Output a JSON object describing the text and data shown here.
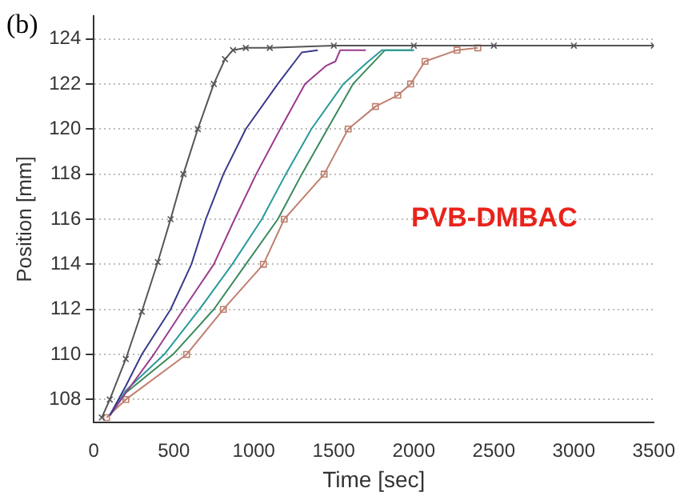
{
  "chart_data": {
    "type": "line",
    "xlabel": "Time [sec]",
    "ylabel": "Position [mm]",
    "annotations": [
      "(b)",
      "PVB-DMBAC"
    ],
    "xlim": [
      0,
      3500
    ],
    "xticks": [
      0,
      500,
      1000,
      1500,
      2000,
      2500,
      3000,
      3500
    ],
    "ylim": [
      107,
      125
    ],
    "yticks": [
      108,
      110,
      112,
      114,
      116,
      118,
      120,
      122,
      124
    ],
    "grid": "y",
    "legend": false,
    "line_style": "solid",
    "series": [
      {
        "color": "#555555",
        "marker": "cross",
        "x": [
          50,
          100,
          200,
          300,
          400,
          480,
          560,
          650,
          750,
          820,
          870,
          950,
          1100,
          1500,
          2000,
          2500,
          3000,
          3500
        ],
        "values": [
          107.2,
          108,
          109.8,
          111.9,
          114.1,
          116,
          118,
          120,
          122,
          123.1,
          123.5,
          123.6,
          123.6,
          123.7,
          123.7,
          123.7,
          123.7,
          123.7
        ]
      },
      {
        "color": "#3a3a8c",
        "marker": "none",
        "x": [
          100,
          200,
          300,
          480,
          610,
          700,
          810,
          950,
          1150,
          1300,
          1400
        ],
        "values": [
          107.3,
          108.6,
          110,
          112,
          114,
          116,
          118,
          120,
          122,
          123.4,
          123.5
        ]
      },
      {
        "color": "#9b3a8c",
        "marker": "none",
        "x": [
          100,
          200,
          375,
          560,
          750,
          880,
          1015,
          1165,
          1320,
          1450,
          1510,
          1540,
          1700
        ],
        "values": [
          107.3,
          108.3,
          110,
          112,
          114,
          116,
          118,
          120,
          122,
          122.8,
          123,
          123.5,
          123.5
        ]
      },
      {
        "color": "#2a9a9a",
        "marker": "none",
        "x": [
          100,
          200,
          440,
          660,
          865,
          1050,
          1200,
          1360,
          1560,
          1700,
          1800,
          2000
        ],
        "values": [
          107.3,
          108.4,
          110,
          112,
          114,
          116,
          118,
          120,
          122,
          122.9,
          123.5,
          123.5
        ]
      },
      {
        "color": "#3a8a5a",
        "marker": "none",
        "x": [
          100,
          200,
          495,
          750,
          950,
          1150,
          1300,
          1460,
          1620,
          1820,
          2000
        ],
        "values": [
          107.3,
          108.3,
          110,
          112,
          114,
          116,
          118,
          120,
          122,
          123.5,
          123.5
        ]
      },
      {
        "color": "#c08070",
        "marker": "square",
        "x": [
          80,
          200,
          580,
          810,
          1060,
          1190,
          1440,
          1590,
          1760,
          1900,
          1980,
          2070,
          2270,
          2400
        ],
        "values": [
          107.2,
          108,
          110,
          112,
          114,
          116,
          118,
          120,
          121,
          121.5,
          122,
          123,
          123.5,
          123.6
        ]
      }
    ]
  }
}
